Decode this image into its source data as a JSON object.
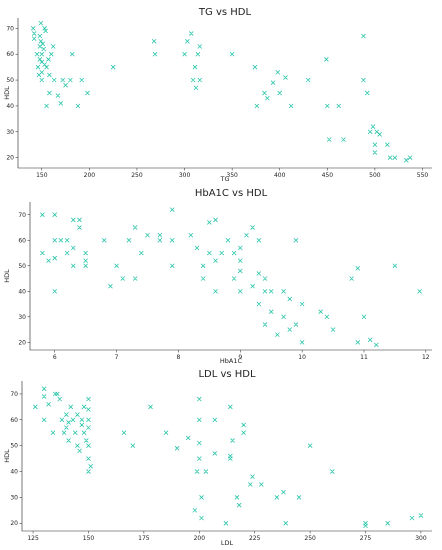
{
  "accent": "#27c4a8",
  "chart_data": [
    {
      "type": "scatter",
      "title": "TG vs HDL",
      "xlabel": "TG",
      "ylabel": "HDL",
      "marker": "x",
      "xlim": [
        125,
        560
      ],
      "ylim": [
        16,
        74
      ],
      "xticks": [
        150,
        200,
        250,
        300,
        350,
        400,
        450,
        500,
        550
      ],
      "yticks": [
        20,
        30,
        40,
        50,
        60,
        70
      ],
      "grid": false,
      "points": [
        [
          141,
          70
        ],
        [
          142,
          68
        ],
        [
          142,
          66
        ],
        [
          145,
          60
        ],
        [
          146,
          55
        ],
        [
          147,
          52
        ],
        [
          148,
          58
        ],
        [
          148,
          63
        ],
        [
          148,
          67
        ],
        [
          149,
          72
        ],
        [
          149,
          65
        ],
        [
          150,
          60
        ],
        [
          150,
          57
        ],
        [
          150,
          53
        ],
        [
          150,
          50
        ],
        [
          151,
          64
        ],
        [
          152,
          62
        ],
        [
          153,
          70
        ],
        [
          153,
          56
        ],
        [
          154,
          69
        ],
        [
          155,
          40
        ],
        [
          155,
          55
        ],
        [
          157,
          58
        ],
        [
          158,
          52
        ],
        [
          158,
          45
        ],
        [
          160,
          60
        ],
        [
          162,
          63
        ],
        [
          163,
          50
        ],
        [
          167,
          44
        ],
        [
          170,
          41
        ],
        [
          172,
          50
        ],
        [
          175,
          48
        ],
        [
          180,
          50
        ],
        [
          182,
          60
        ],
        [
          188,
          40
        ],
        [
          192,
          50
        ],
        [
          198,
          45
        ],
        [
          225,
          55
        ],
        [
          268,
          65
        ],
        [
          269,
          60
        ],
        [
          300,
          60
        ],
        [
          303,
          65
        ],
        [
          307,
          68
        ],
        [
          309,
          50
        ],
        [
          311,
          55
        ],
        [
          312,
          47
        ],
        [
          314,
          60
        ],
        [
          316,
          63
        ],
        [
          316,
          50
        ],
        [
          350,
          60
        ],
        [
          374,
          55
        ],
        [
          376,
          40
        ],
        [
          384,
          45
        ],
        [
          387,
          43
        ],
        [
          393,
          49
        ],
        [
          398,
          53
        ],
        [
          400,
          45
        ],
        [
          406,
          51
        ],
        [
          412,
          40
        ],
        [
          430,
          50
        ],
        [
          449,
          58
        ],
        [
          450,
          40
        ],
        [
          452,
          27
        ],
        [
          462,
          40
        ],
        [
          467,
          27
        ],
        [
          488,
          67
        ],
        [
          488,
          50
        ],
        [
          492,
          45
        ],
        [
          495,
          30
        ],
        [
          498,
          32
        ],
        [
          500,
          22
        ],
        [
          500,
          25
        ],
        [
          502,
          30
        ],
        [
          505,
          29
        ],
        [
          513,
          25
        ],
        [
          516,
          20
        ],
        [
          521,
          20
        ],
        [
          533,
          19
        ],
        [
          537,
          20
        ]
      ]
    },
    {
      "type": "scatter",
      "title": "HbA1C vs HDL",
      "xlabel": "HbA1C",
      "ylabel": "HDL",
      "marker": "x",
      "xlim": [
        5.6,
        12.1
      ],
      "ylim": [
        17,
        75
      ],
      "xticks": [
        6,
        7,
        8,
        9,
        10,
        11,
        12
      ],
      "yticks": [
        20,
        30,
        40,
        50,
        60,
        70
      ],
      "grid": false,
      "points": [
        [
          5.8,
          70
        ],
        [
          5.8,
          55
        ],
        [
          5.9,
          52
        ],
        [
          6.0,
          70
        ],
        [
          6.0,
          60
        ],
        [
          6.0,
          40
        ],
        [
          6.0,
          53
        ],
        [
          6.1,
          60
        ],
        [
          6.2,
          55
        ],
        [
          6.2,
          60
        ],
        [
          6.3,
          68
        ],
        [
          6.3,
          50
        ],
        [
          6.3,
          57
        ],
        [
          6.4,
          65
        ],
        [
          6.4,
          68
        ],
        [
          6.5,
          55
        ],
        [
          6.5,
          52
        ],
        [
          6.5,
          50
        ],
        [
          6.8,
          60
        ],
        [
          6.9,
          42
        ],
        [
          7.0,
          50
        ],
        [
          7.1,
          45
        ],
        [
          7.2,
          60
        ],
        [
          7.3,
          45
        ],
        [
          7.3,
          65
        ],
        [
          7.4,
          55
        ],
        [
          7.5,
          62
        ],
        [
          7.7,
          62
        ],
        [
          7.7,
          60
        ],
        [
          7.9,
          60
        ],
        [
          7.9,
          50
        ],
        [
          7.9,
          72
        ],
        [
          8.2,
          62
        ],
        [
          8.3,
          57
        ],
        [
          8.4,
          50
        ],
        [
          8.4,
          45
        ],
        [
          8.5,
          55
        ],
        [
          8.5,
          67
        ],
        [
          8.6,
          68
        ],
        [
          8.6,
          52
        ],
        [
          8.6,
          40
        ],
        [
          8.7,
          55
        ],
        [
          8.8,
          60
        ],
        [
          8.9,
          55
        ],
        [
          8.9,
          45
        ],
        [
          9.0,
          57
        ],
        [
          9.0,
          52
        ],
        [
          9.0,
          48
        ],
        [
          9.0,
          40
        ],
        [
          9.1,
          62
        ],
        [
          9.2,
          65
        ],
        [
          9.2,
          42
        ],
        [
          9.3,
          60
        ],
        [
          9.3,
          35
        ],
        [
          9.3,
          47
        ],
        [
          9.4,
          40
        ],
        [
          9.4,
          45
        ],
        [
          9.4,
          27
        ],
        [
          9.5,
          40
        ],
        [
          9.5,
          32
        ],
        [
          9.6,
          23
        ],
        [
          9.7,
          30
        ],
        [
          9.7,
          40
        ],
        [
          9.8,
          25
        ],
        [
          9.8,
          37
        ],
        [
          9.9,
          27
        ],
        [
          9.9,
          60
        ],
        [
          10.0,
          20
        ],
        [
          10.0,
          35
        ],
        [
          10.3,
          32
        ],
        [
          10.4,
          30
        ],
        [
          10.5,
          25
        ],
        [
          10.8,
          45
        ],
        [
          10.9,
          20
        ],
        [
          10.9,
          49
        ],
        [
          11.0,
          30
        ],
        [
          11.1,
          21
        ],
        [
          11.2,
          19
        ],
        [
          11.5,
          50
        ],
        [
          11.9,
          40
        ]
      ]
    },
    {
      "type": "scatter",
      "title": "LDL vs HDL",
      "xlabel": "LDL",
      "ylabel": "HDL",
      "marker": "x",
      "xlim": [
        120,
        305
      ],
      "ylim": [
        17,
        75
      ],
      "xticks": [
        125,
        150,
        175,
        200,
        225,
        250,
        275,
        300
      ],
      "yticks": [
        20,
        30,
        40,
        50,
        60,
        70
      ],
      "grid": false,
      "points": [
        [
          126,
          65
        ],
        [
          130,
          69
        ],
        [
          130,
          72
        ],
        [
          130,
          60
        ],
        [
          132,
          66
        ],
        [
          134,
          55
        ],
        [
          135,
          70
        ],
        [
          136,
          70
        ],
        [
          137,
          68
        ],
        [
          138,
          60
        ],
        [
          139,
          55
        ],
        [
          140,
          62
        ],
        [
          140,
          57
        ],
        [
          141,
          52
        ],
        [
          141,
          59
        ],
        [
          142,
          65
        ],
        [
          143,
          60
        ],
        [
          144,
          55
        ],
        [
          145,
          62
        ],
        [
          145,
          50
        ],
        [
          146,
          48
        ],
        [
          147,
          58
        ],
        [
          147,
          60
        ],
        [
          148,
          65
        ],
        [
          148,
          55
        ],
        [
          149,
          52
        ],
        [
          150,
          64
        ],
        [
          150,
          60
        ],
        [
          150,
          57
        ],
        [
          150,
          50
        ],
        [
          150,
          45
        ],
        [
          150,
          40
        ],
        [
          150,
          68
        ],
        [
          151,
          42
        ],
        [
          166,
          55
        ],
        [
          170,
          50
        ],
        [
          178,
          65
        ],
        [
          185,
          55
        ],
        [
          190,
          49
        ],
        [
          195,
          53
        ],
        [
          198,
          25
        ],
        [
          199,
          40
        ],
        [
          200,
          68
        ],
        [
          200,
          60
        ],
        [
          200,
          51
        ],
        [
          200,
          45
        ],
        [
          201,
          30
        ],
        [
          201,
          22
        ],
        [
          203,
          40
        ],
        [
          207,
          47
        ],
        [
          207,
          60
        ],
        [
          212,
          20
        ],
        [
          214,
          65
        ],
        [
          214,
          46
        ],
        [
          214,
          45
        ],
        [
          215,
          52
        ],
        [
          217,
          30
        ],
        [
          218,
          27
        ],
        [
          220,
          58
        ],
        [
          220,
          55
        ],
        [
          223,
          35
        ],
        [
          224,
          38
        ],
        [
          228,
          35
        ],
        [
          235,
          30
        ],
        [
          238,
          32
        ],
        [
          239,
          20
        ],
        [
          245,
          30
        ],
        [
          250,
          50
        ],
        [
          260,
          40
        ],
        [
          275,
          20
        ],
        [
          275,
          19
        ],
        [
          285,
          20
        ],
        [
          296,
          22
        ],
        [
          300,
          23
        ]
      ]
    }
  ]
}
